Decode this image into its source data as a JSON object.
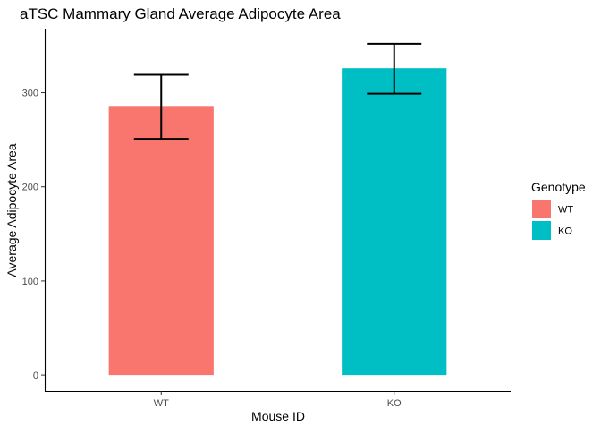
{
  "chart_data": {
    "type": "bar",
    "title": "aTSC Mammary Gland Average Adipocyte Area",
    "xlabel": "Mouse ID",
    "ylabel": "Average Adipocyte Area",
    "categories": [
      "WT",
      "KO"
    ],
    "values": [
      285,
      326
    ],
    "error_bars": [
      {
        "low": 251,
        "high": 319
      },
      {
        "low": 299,
        "high": 352
      }
    ],
    "yticks": [
      0,
      100,
      200,
      300
    ],
    "ytick_labels": [
      "0",
      "100",
      "200",
      "300"
    ],
    "ylim": [
      -17,
      368
    ],
    "grid": false,
    "legend": {
      "title": "Genotype",
      "placement": "right",
      "entries": [
        {
          "label": "WT",
          "color": "#F8766D"
        },
        {
          "label": "KO",
          "color": "#00BFC4"
        }
      ]
    },
    "colors": [
      "#F8766D",
      "#00BFC4"
    ]
  }
}
